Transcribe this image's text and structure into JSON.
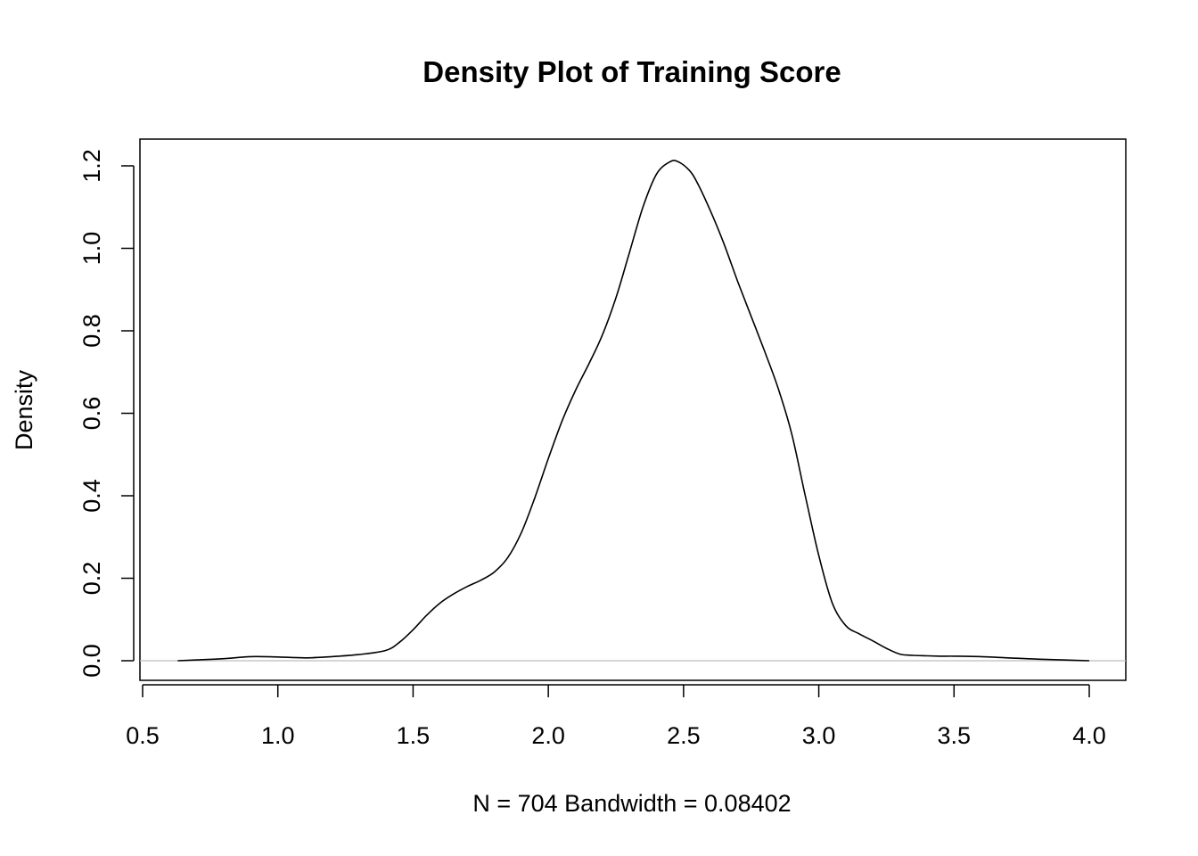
{
  "chart_data": {
    "type": "line",
    "title": "Density Plot of Training Score",
    "xlabel": "N = 704   Bandwidth = 0.08402",
    "ylabel": "Density",
    "xlim": [
      0.5,
      4.0
    ],
    "ylim": [
      0.0,
      1.2
    ],
    "xticks": [
      "0.5",
      "1.0",
      "1.5",
      "2.0",
      "2.5",
      "3.0",
      "3.5",
      "4.0"
    ],
    "yticks": [
      "0.0",
      "0.2",
      "0.4",
      "0.6",
      "0.8",
      "1.0",
      "1.2"
    ],
    "baseline_y": 0.0,
    "grid": false,
    "legend": "none",
    "colors": {
      "line": "#000000",
      "baseline": "#bebebe",
      "frame": "#000000"
    },
    "series": [
      {
        "x": [
          0.63,
          0.7,
          0.8,
          0.9,
          1.0,
          1.1,
          1.2,
          1.3,
          1.4,
          1.45,
          1.5,
          1.55,
          1.6,
          1.65,
          1.7,
          1.75,
          1.8,
          1.85,
          1.9,
          1.95,
          2.0,
          2.05,
          2.1,
          2.15,
          2.2,
          2.25,
          2.3,
          2.35,
          2.4,
          2.45,
          2.48,
          2.52,
          2.55,
          2.6,
          2.65,
          2.7,
          2.75,
          2.8,
          2.85,
          2.9,
          2.95,
          3.0,
          3.05,
          3.1,
          3.15,
          3.2,
          3.25,
          3.3,
          3.35,
          3.4,
          3.45,
          3.5,
          3.6,
          3.7,
          3.8,
          3.9,
          4.0
        ],
        "y": [
          0.0,
          0.002,
          0.005,
          0.01,
          0.009,
          0.007,
          0.01,
          0.015,
          0.025,
          0.045,
          0.075,
          0.11,
          0.14,
          0.162,
          0.18,
          0.195,
          0.215,
          0.25,
          0.31,
          0.395,
          0.49,
          0.58,
          0.655,
          0.72,
          0.79,
          0.88,
          0.99,
          1.1,
          1.18,
          1.21,
          1.21,
          1.19,
          1.16,
          1.09,
          1.01,
          0.92,
          0.835,
          0.75,
          0.66,
          0.55,
          0.4,
          0.255,
          0.14,
          0.085,
          0.065,
          0.048,
          0.03,
          0.016,
          0.013,
          0.012,
          0.011,
          0.011,
          0.01,
          0.007,
          0.004,
          0.002,
          0.0
        ]
      }
    ]
  }
}
